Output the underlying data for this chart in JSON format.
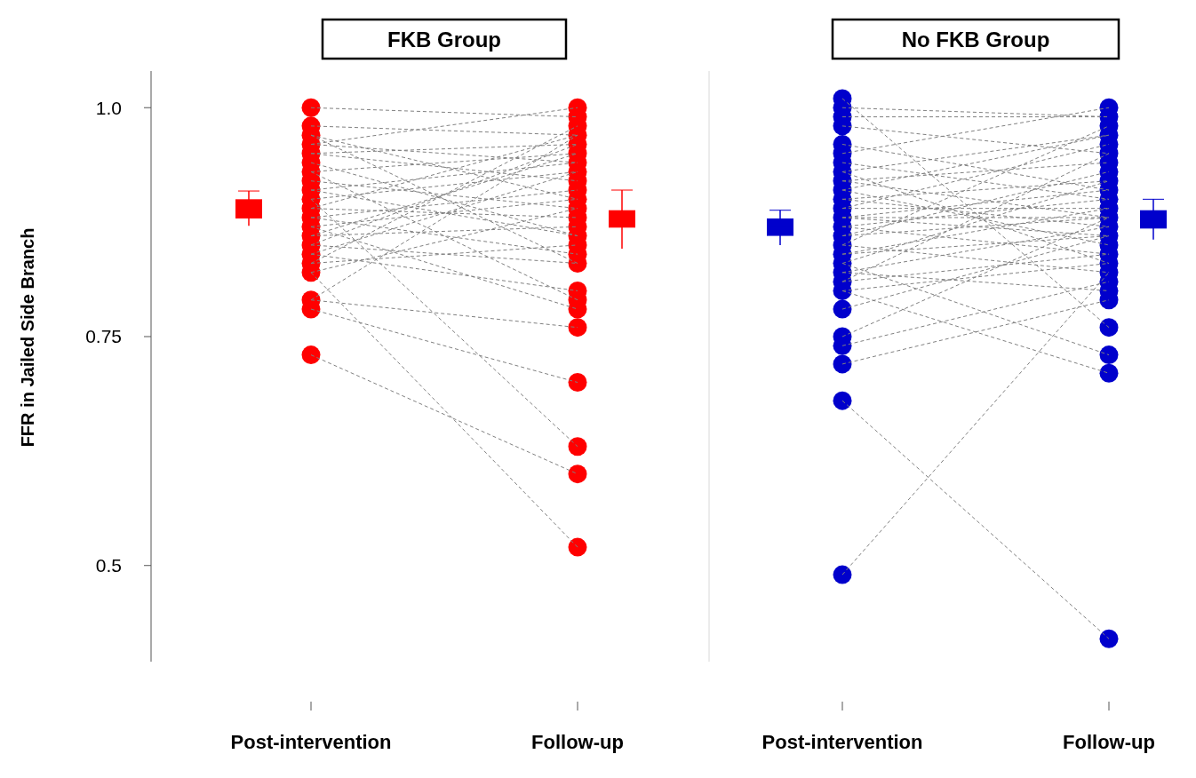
{
  "chart_data": [
    {
      "type": "scatter",
      "title": "FKB Group",
      "ylabel": "FFR in Jailed Side Branch",
      "categories": [
        "Post-intervention",
        "Follow-up"
      ],
      "ylim": [
        0.395,
        1.04
      ],
      "yticks": [
        0.5,
        0.75,
        {
          "value": 1,
          "label": "1.0"
        }
      ],
      "line_style": "dashed",
      "series": [
        {
          "type": "scatter",
          "marker": "circle",
          "color": "#ff0000",
          "x": [
            "Post-intervention",
            "Post-intervention",
            "Post-intervention",
            "Post-intervention",
            "Post-intervention",
            "Post-intervention",
            "Post-intervention",
            "Post-intervention",
            "Post-intervention",
            "Post-intervention",
            "Post-intervention",
            "Post-intervention",
            "Post-intervention",
            "Post-intervention",
            "Post-intervention",
            "Post-intervention",
            "Post-intervention",
            "Post-intervention",
            "Post-intervention",
            "Post-intervention",
            "Post-intervention"
          ],
          "values": [
            1.0,
            0.98,
            0.97,
            0.96,
            0.95,
            0.94,
            0.93,
            0.92,
            0.91,
            0.9,
            0.89,
            0.88,
            0.87,
            0.86,
            0.85,
            0.84,
            0.83,
            0.82,
            0.79,
            0.78,
            0.73
          ]
        },
        {
          "type": "scatter",
          "marker": "circle",
          "color": "#ff0000",
          "x": [
            "Follow-up",
            "Follow-up",
            "Follow-up",
            "Follow-up",
            "Follow-up",
            "Follow-up",
            "Follow-up",
            "Follow-up",
            "Follow-up",
            "Follow-up",
            "Follow-up",
            "Follow-up",
            "Follow-up",
            "Follow-up",
            "Follow-up",
            "Follow-up",
            "Follow-up",
            "Follow-up",
            "Follow-up",
            "Follow-up",
            "Follow-up",
            "Follow-up",
            "Follow-up",
            "Follow-up",
            "Follow-up",
            "Follow-up"
          ],
          "values": [
            1.0,
            0.99,
            0.98,
            0.97,
            0.96,
            0.95,
            0.94,
            0.93,
            0.92,
            0.91,
            0.9,
            0.89,
            0.88,
            0.87,
            0.86,
            0.85,
            0.84,
            0.83,
            0.8,
            0.79,
            0.78,
            0.76,
            0.7,
            0.63,
            0.6,
            0.52
          ]
        },
        {
          "type": "line",
          "color": "#808080",
          "values": [
            1.0,
            0.99
          ]
        },
        {
          "type": "line",
          "color": "#808080",
          "values": [
            0.98,
            0.97
          ]
        },
        {
          "type": "line",
          "color": "#808080",
          "values": [
            0.97,
            0.83
          ]
        },
        {
          "type": "line",
          "color": "#808080",
          "values": [
            0.96,
            1.0
          ]
        },
        {
          "type": "line",
          "color": "#808080",
          "values": [
            0.95,
            0.96
          ]
        },
        {
          "type": "line",
          "color": "#808080",
          "values": [
            0.95,
            0.92
          ]
        },
        {
          "type": "line",
          "color": "#808080",
          "values": [
            0.94,
            0.86
          ]
        },
        {
          "type": "line",
          "color": "#808080",
          "values": [
            0.93,
            0.95
          ]
        },
        {
          "type": "line",
          "color": "#808080",
          "values": [
            0.92,
            0.89
          ]
        },
        {
          "type": "line",
          "color": "#808080",
          "values": [
            0.91,
            0.94
          ]
        },
        {
          "type": "line",
          "color": "#808080",
          "values": [
            0.9,
            0.63
          ]
        },
        {
          "type": "line",
          "color": "#808080",
          "values": [
            0.9,
            0.93
          ]
        },
        {
          "type": "line",
          "color": "#808080",
          "values": [
            0.89,
            0.88
          ]
        },
        {
          "type": "line",
          "color": "#808080",
          "values": [
            0.89,
            0.97
          ]
        },
        {
          "type": "line",
          "color": "#808080",
          "values": [
            0.88,
            0.91
          ]
        },
        {
          "type": "line",
          "color": "#808080",
          "values": [
            0.88,
            0.84
          ]
        },
        {
          "type": "line",
          "color": "#808080",
          "values": [
            0.87,
            0.9
          ]
        },
        {
          "type": "line",
          "color": "#808080",
          "values": [
            0.87,
            0.78
          ]
        },
        {
          "type": "line",
          "color": "#808080",
          "values": [
            0.86,
            0.95
          ]
        },
        {
          "type": "line",
          "color": "#808080",
          "values": [
            0.86,
            0.87
          ]
        },
        {
          "type": "line",
          "color": "#808080",
          "values": [
            0.85,
            0.96
          ]
        },
        {
          "type": "line",
          "color": "#808080",
          "values": [
            0.85,
            0.83
          ]
        },
        {
          "type": "line",
          "color": "#808080",
          "values": [
            0.84,
            0.93
          ]
        },
        {
          "type": "line",
          "color": "#808080",
          "values": [
            0.84,
            0.8
          ]
        },
        {
          "type": "line",
          "color": "#808080",
          "values": [
            0.83,
            0.98
          ]
        },
        {
          "type": "line",
          "color": "#808080",
          "values": [
            0.83,
            0.85
          ]
        },
        {
          "type": "line",
          "color": "#808080",
          "values": [
            0.82,
            0.52
          ]
        },
        {
          "type": "line",
          "color": "#808080",
          "values": [
            0.82,
            0.89
          ]
        },
        {
          "type": "line",
          "color": "#808080",
          "values": [
            0.79,
            0.97
          ]
        },
        {
          "type": "line",
          "color": "#808080",
          "values": [
            0.78,
            0.7
          ]
        },
        {
          "type": "line",
          "color": "#808080",
          "values": [
            0.79,
            0.76
          ]
        },
        {
          "type": "line",
          "color": "#808080",
          "values": [
            0.73,
            0.6
          ]
        },
        {
          "type": "line",
          "color": "#808080",
          "values": [
            0.93,
            0.79
          ]
        },
        {
          "type": "line",
          "color": "#808080",
          "values": [
            0.91,
            0.86
          ]
        },
        {
          "type": "line",
          "color": "#808080",
          "values": [
            0.96,
            0.94
          ]
        },
        {
          "type": "line",
          "color": "#808080",
          "values": [
            0.97,
            0.9
          ]
        },
        {
          "type": "box",
          "color": "#ff0000",
          "boxes": [
            {
              "low": 0.871,
              "q1": 0.879,
              "median": 0.888,
              "q3": 0.9,
              "high": 0.909
            },
            {
              "low": 0.846,
              "q1": 0.869,
              "median": 0.879,
              "q3": 0.888,
              "high": 0.91
            }
          ]
        }
      ]
    },
    {
      "type": "scatter",
      "title": "No FKB Group",
      "categories": [
        "Post-intervention",
        "Follow-up"
      ],
      "ylim": [
        0.395,
        1.04
      ],
      "tick_labels": "x",
      "line_style": "dashed",
      "series": [
        {
          "type": "scatter",
          "marker": "circle",
          "color": "#0000cc",
          "x": [
            "Post-intervention",
            "Post-intervention",
            "Post-intervention",
            "Post-intervention",
            "Post-intervention",
            "Post-intervention",
            "Post-intervention",
            "Post-intervention",
            "Post-intervention",
            "Post-intervention",
            "Post-intervention",
            "Post-intervention",
            "Post-intervention",
            "Post-intervention",
            "Post-intervention",
            "Post-intervention",
            "Post-intervention",
            "Post-intervention",
            "Post-intervention",
            "Post-intervention",
            "Post-intervention",
            "Post-intervention",
            "Post-intervention",
            "Post-intervention",
            "Post-intervention",
            "Post-intervention",
            "Post-intervention"
          ],
          "values": [
            1.01,
            1.0,
            0.99,
            0.98,
            0.96,
            0.95,
            0.94,
            0.93,
            0.92,
            0.91,
            0.9,
            0.89,
            0.88,
            0.87,
            0.86,
            0.85,
            0.84,
            0.83,
            0.82,
            0.81,
            0.8,
            0.78,
            0.75,
            0.74,
            0.72,
            0.68,
            0.49
          ]
        },
        {
          "type": "scatter",
          "marker": "circle",
          "color": "#0000cc",
          "x": [
            "Follow-up",
            "Follow-up",
            "Follow-up",
            "Follow-up",
            "Follow-up",
            "Follow-up",
            "Follow-up",
            "Follow-up",
            "Follow-up",
            "Follow-up",
            "Follow-up",
            "Follow-up",
            "Follow-up",
            "Follow-up",
            "Follow-up",
            "Follow-up",
            "Follow-up",
            "Follow-up",
            "Follow-up",
            "Follow-up",
            "Follow-up",
            "Follow-up",
            "Follow-up",
            "Follow-up",
            "Follow-up",
            "Follow-up"
          ],
          "values": [
            1.0,
            0.99,
            0.98,
            0.97,
            0.96,
            0.95,
            0.94,
            0.93,
            0.92,
            0.91,
            0.9,
            0.89,
            0.88,
            0.87,
            0.86,
            0.85,
            0.84,
            0.83,
            0.82,
            0.81,
            0.8,
            0.79,
            0.76,
            0.73,
            0.71,
            0.42
          ]
        },
        {
          "type": "line",
          "color": "#808080",
          "values": [
            1.01,
            0.76
          ]
        },
        {
          "type": "line",
          "color": "#808080",
          "values": [
            1.0,
            0.99
          ]
        },
        {
          "type": "line",
          "color": "#808080",
          "values": [
            0.99,
            0.99
          ]
        },
        {
          "type": "line",
          "color": "#808080",
          "values": [
            0.98,
            0.95
          ]
        },
        {
          "type": "line",
          "color": "#808080",
          "values": [
            0.95,
            1.0
          ]
        },
        {
          "type": "line",
          "color": "#808080",
          "values": [
            0.94,
            0.9
          ]
        },
        {
          "type": "line",
          "color": "#808080",
          "values": [
            0.93,
            0.97
          ]
        },
        {
          "type": "line",
          "color": "#808080",
          "values": [
            0.92,
            0.88
          ]
        },
        {
          "type": "line",
          "color": "#808080",
          "values": [
            0.92,
            0.94
          ]
        },
        {
          "type": "line",
          "color": "#808080",
          "values": [
            0.91,
            0.85
          ]
        },
        {
          "type": "line",
          "color": "#808080",
          "values": [
            0.9,
            0.92
          ]
        },
        {
          "type": "line",
          "color": "#808080",
          "values": [
            0.9,
            0.87
          ]
        },
        {
          "type": "line",
          "color": "#808080",
          "values": [
            0.89,
            0.89
          ]
        },
        {
          "type": "line",
          "color": "#808080",
          "values": [
            0.89,
            0.96
          ]
        },
        {
          "type": "line",
          "color": "#808080",
          "values": [
            0.88,
            0.88
          ]
        },
        {
          "type": "line",
          "color": "#808080",
          "values": [
            0.88,
            0.86
          ]
        },
        {
          "type": "line",
          "color": "#808080",
          "values": [
            0.88,
            0.91
          ]
        },
        {
          "type": "line",
          "color": "#808080",
          "values": [
            0.87,
            0.9
          ]
        },
        {
          "type": "line",
          "color": "#808080",
          "values": [
            0.87,
            0.84
          ]
        },
        {
          "type": "line",
          "color": "#808080",
          "values": [
            0.86,
            0.93
          ]
        },
        {
          "type": "line",
          "color": "#808080",
          "values": [
            0.86,
            0.88
          ]
        },
        {
          "type": "line",
          "color": "#808080",
          "values": [
            0.85,
            0.82
          ]
        },
        {
          "type": "line",
          "color": "#808080",
          "values": [
            0.85,
            0.98
          ]
        },
        {
          "type": "line",
          "color": "#808080",
          "values": [
            0.84,
            0.86
          ]
        },
        {
          "type": "line",
          "color": "#808080",
          "values": [
            0.84,
            0.89
          ]
        },
        {
          "type": "line",
          "color": "#808080",
          "values": [
            0.83,
            0.73
          ]
        },
        {
          "type": "line",
          "color": "#808080",
          "values": [
            0.83,
            0.92
          ]
        },
        {
          "type": "line",
          "color": "#808080",
          "values": [
            0.82,
            0.87
          ]
        },
        {
          "type": "line",
          "color": "#808080",
          "values": [
            0.82,
            0.8
          ]
        },
        {
          "type": "line",
          "color": "#808080",
          "values": [
            0.81,
            0.95
          ]
        },
        {
          "type": "line",
          "color": "#808080",
          "values": [
            0.81,
            0.84
          ]
        },
        {
          "type": "line",
          "color": "#808080",
          "values": [
            0.8,
            0.83
          ]
        },
        {
          "type": "line",
          "color": "#808080",
          "values": [
            0.8,
            0.71
          ]
        },
        {
          "type": "line",
          "color": "#808080",
          "values": [
            0.78,
            0.86
          ]
        },
        {
          "type": "line",
          "color": "#808080",
          "values": [
            0.75,
            0.88
          ]
        },
        {
          "type": "line",
          "color": "#808080",
          "values": [
            0.74,
            0.81
          ]
        },
        {
          "type": "line",
          "color": "#808080",
          "values": [
            0.72,
            0.79
          ]
        },
        {
          "type": "line",
          "color": "#808080",
          "values": [
            0.68,
            0.42
          ]
        },
        {
          "type": "line",
          "color": "#808080",
          "values": [
            0.49,
            0.82
          ]
        },
        {
          "type": "line",
          "color": "#808080",
          "values": [
            0.93,
            0.83
          ]
        },
        {
          "type": "line",
          "color": "#808080",
          "values": [
            0.91,
            0.97
          ]
        },
        {
          "type": "line",
          "color": "#808080",
          "values": [
            0.96,
            0.91
          ]
        },
        {
          "type": "box",
          "color": "#0000cc",
          "boxes": [
            {
              "low": 0.85,
              "q1": 0.86,
              "median": 0.87,
              "q3": 0.879,
              "high": 0.888
            },
            {
              "low": 0.856,
              "q1": 0.868,
              "median": 0.878,
              "q3": 0.888,
              "high": 0.9
            }
          ]
        }
      ]
    }
  ]
}
